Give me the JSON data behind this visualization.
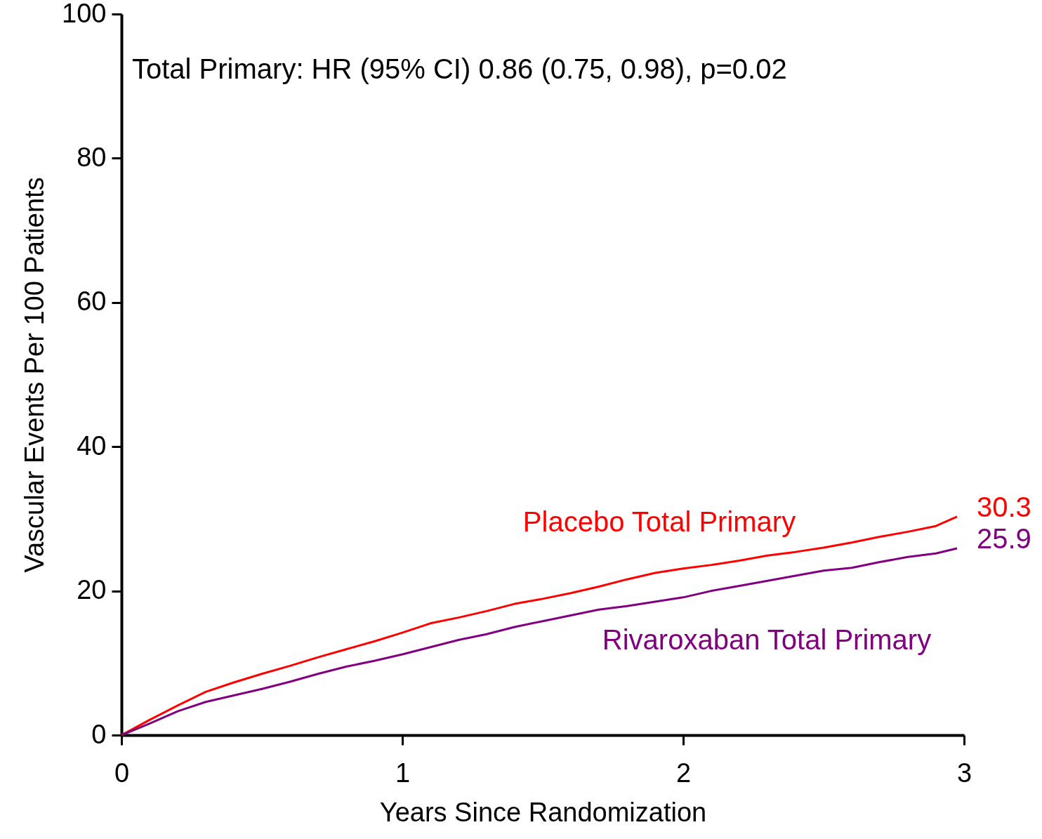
{
  "chart_data": {
    "type": "line",
    "xlabel": "Years Since Randomization",
    "ylabel": "Vascular Events Per 100 Patients",
    "annotations": [
      "Total Primary: HR (95% CI) 0.86 (0.75, 0.98), p=0.02"
    ],
    "x": [
      0,
      0.1,
      0.2,
      0.3,
      0.4,
      0.5,
      0.6,
      0.7,
      0.8,
      0.9,
      1.0,
      1.1,
      1.2,
      1.3,
      1.4,
      1.5,
      1.6,
      1.7,
      1.8,
      1.9,
      2.0,
      2.1,
      2.2,
      2.3,
      2.4,
      2.5,
      2.6,
      2.7,
      2.8,
      2.9,
      2.975
    ],
    "series": [
      {
        "name": "Placebo Total Primary",
        "color": "#ff0000",
        "values": [
          0,
          2.1,
          4.1,
          6.0,
          7.3,
          8.5,
          9.6,
          10.8,
          11.9,
          13.0,
          14.2,
          15.5,
          16.3,
          17.2,
          18.2,
          18.9,
          19.7,
          20.6,
          21.6,
          22.5,
          23.1,
          23.6,
          24.2,
          24.9,
          25.4,
          26.0,
          26.7,
          27.5,
          28.2,
          29.0,
          30.3
        ],
        "value_labels": [
          null,
          null,
          null,
          null,
          null,
          null,
          null,
          null,
          null,
          null,
          null,
          null,
          null,
          null,
          null,
          null,
          null,
          null,
          null,
          null,
          null,
          null,
          null,
          null,
          null,
          null,
          null,
          null,
          null,
          null,
          "30.3"
        ]
      },
      {
        "name": "Rivaroxaban Total Primary",
        "color": "#800080",
        "values": [
          0,
          1.6,
          3.3,
          4.6,
          5.5,
          6.4,
          7.4,
          8.5,
          9.5,
          10.3,
          11.2,
          12.2,
          13.2,
          14.0,
          15.0,
          15.8,
          16.6,
          17.4,
          17.9,
          18.5,
          19.1,
          20.0,
          20.7,
          21.4,
          22.1,
          22.8,
          23.2,
          24.0,
          24.7,
          25.2,
          25.9
        ],
        "value_labels": [
          null,
          null,
          null,
          null,
          null,
          null,
          null,
          null,
          null,
          null,
          null,
          null,
          null,
          null,
          null,
          null,
          null,
          null,
          null,
          null,
          null,
          null,
          null,
          null,
          null,
          null,
          null,
          null,
          null,
          null,
          "25.9"
        ]
      }
    ],
    "xlim": [
      0,
      3
    ],
    "xticks": [
      0,
      1,
      2,
      3
    ],
    "ylim": [
      0,
      100
    ],
    "yticks": [
      0,
      20,
      40,
      60,
      80,
      100
    ],
    "grid": false,
    "legend": false,
    "marker": "none",
    "line_style": "solid"
  }
}
